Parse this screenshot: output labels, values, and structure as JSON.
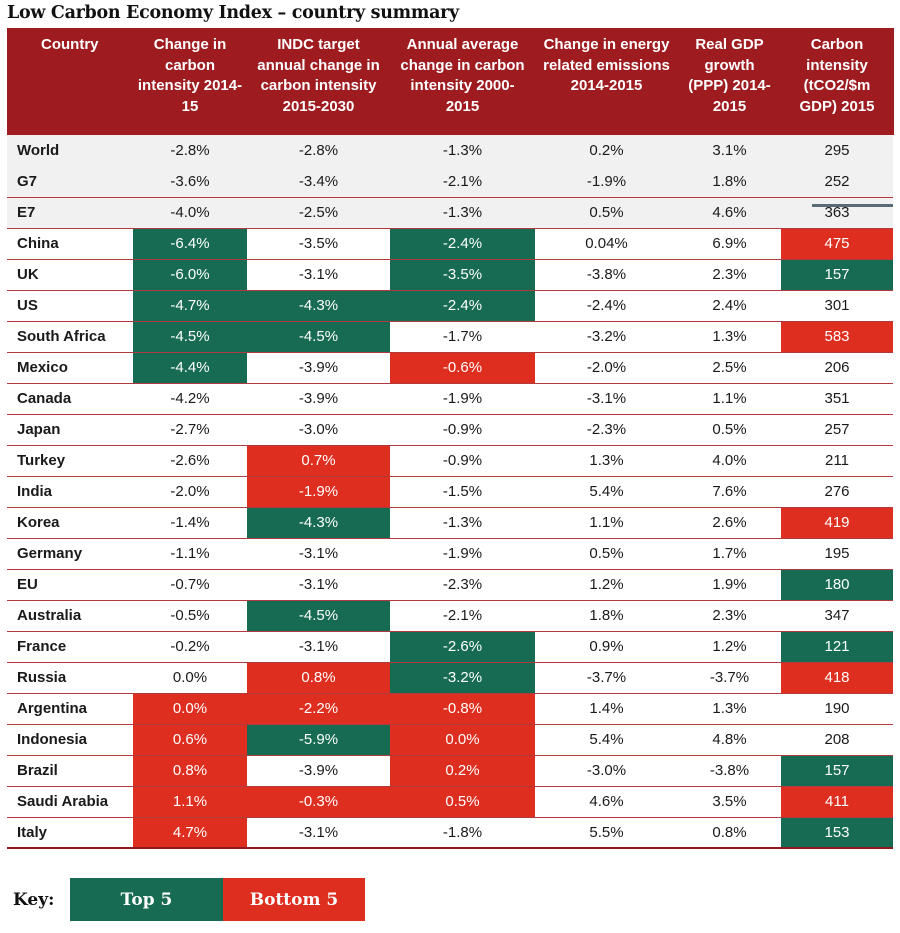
{
  "title": "Low Carbon Economy Index – country summary",
  "colors": {
    "header": "#9e1b20",
    "top5": "#176b53",
    "bottom5": "#de2e1f",
    "aggregate_row": "#f1f1f1"
  },
  "columns": [
    "Country",
    "Change in carbon intensity 2014-15",
    "INDC target annual change in carbon intensity 2015-2030",
    "Annual average change in carbon intensity 2000-2015",
    "Change in energy related emissions 2014-2015",
    "Real GDP growth (PPP) 2014-2015",
    "Carbon intensity (tCO2/$m GDP) 2015"
  ],
  "rows": [
    {
      "country": "World",
      "values": [
        "-2.8%",
        "-2.8%",
        "-1.3%",
        "0.2%",
        "3.1%",
        "295"
      ],
      "highlight": [
        "",
        "",
        "",
        "",
        "",
        ""
      ],
      "aggregate": true
    },
    {
      "country": "G7",
      "values": [
        "-3.6%",
        "-3.4%",
        "-2.1%",
        "-1.9%",
        "1.8%",
        "252"
      ],
      "highlight": [
        "",
        "",
        "",
        "",
        "",
        ""
      ],
      "aggregate": true
    },
    {
      "country": "E7",
      "values": [
        "-4.0%",
        "-2.5%",
        "-1.3%",
        "0.5%",
        "4.6%",
        "363"
      ],
      "highlight": [
        "",
        "",
        "",
        "",
        "",
        ""
      ],
      "aggregate": true
    },
    {
      "country": "China",
      "values": [
        "-6.4%",
        "-3.5%",
        "-2.4%",
        "0.04%",
        "6.9%",
        "475"
      ],
      "highlight": [
        "top",
        "",
        "top",
        "",
        "",
        "bottom"
      ]
    },
    {
      "country": "UK",
      "values": [
        "-6.0%",
        "-3.1%",
        "-3.5%",
        "-3.8%",
        "2.3%",
        "157"
      ],
      "highlight": [
        "top",
        "",
        "top",
        "",
        "",
        "top"
      ]
    },
    {
      "country": "US",
      "values": [
        "-4.7%",
        "-4.3%",
        "-2.4%",
        "-2.4%",
        "2.4%",
        "301"
      ],
      "highlight": [
        "top",
        "top",
        "top",
        "",
        "",
        ""
      ]
    },
    {
      "country": "South Africa",
      "values": [
        "-4.5%",
        "-4.5%",
        "-1.7%",
        "-3.2%",
        "1.3%",
        "583"
      ],
      "highlight": [
        "top",
        "top",
        "",
        "",
        "",
        "bottom"
      ]
    },
    {
      "country": "Mexico",
      "values": [
        "-4.4%",
        "-3.9%",
        "-0.6%",
        "-2.0%",
        "2.5%",
        "206"
      ],
      "highlight": [
        "top",
        "",
        "bottom",
        "",
        "",
        ""
      ]
    },
    {
      "country": "Canada",
      "values": [
        "-4.2%",
        "-3.9%",
        "-1.9%",
        "-3.1%",
        "1.1%",
        "351"
      ],
      "highlight": [
        "",
        "",
        "",
        "",
        "",
        ""
      ]
    },
    {
      "country": "Japan",
      "values": [
        "-2.7%",
        "-3.0%",
        "-0.9%",
        "-2.3%",
        "0.5%",
        "257"
      ],
      "highlight": [
        "",
        "",
        "",
        "",
        "",
        ""
      ]
    },
    {
      "country": "Turkey",
      "values": [
        "-2.6%",
        "0.7%",
        "-0.9%",
        "1.3%",
        "4.0%",
        "211"
      ],
      "highlight": [
        "",
        "bottom",
        "",
        "",
        "",
        ""
      ]
    },
    {
      "country": "India",
      "values": [
        "-2.0%",
        "-1.9%",
        "-1.5%",
        "5.4%",
        "7.6%",
        "276"
      ],
      "highlight": [
        "",
        "bottom",
        "",
        "",
        "",
        ""
      ]
    },
    {
      "country": "Korea",
      "values": [
        "-1.4%",
        "-4.3%",
        "-1.3%",
        "1.1%",
        "2.6%",
        "419"
      ],
      "highlight": [
        "",
        "top",
        "",
        "",
        "",
        "bottom"
      ]
    },
    {
      "country": "Germany",
      "values": [
        "-1.1%",
        "-3.1%",
        "-1.9%",
        "0.5%",
        "1.7%",
        "195"
      ],
      "highlight": [
        "",
        "",
        "",
        "",
        "",
        ""
      ]
    },
    {
      "country": "EU",
      "values": [
        "-0.7%",
        "-3.1%",
        "-2.3%",
        "1.2%",
        "1.9%",
        "180"
      ],
      "highlight": [
        "",
        "",
        "",
        "",
        "",
        "top"
      ]
    },
    {
      "country": "Australia",
      "values": [
        "-0.5%",
        "-4.5%",
        "-2.1%",
        "1.8%",
        "2.3%",
        "347"
      ],
      "highlight": [
        "",
        "top",
        "",
        "",
        "",
        ""
      ]
    },
    {
      "country": "France",
      "values": [
        "-0.2%",
        "-3.1%",
        "-2.6%",
        "0.9%",
        "1.2%",
        "121"
      ],
      "highlight": [
        "",
        "",
        "top",
        "",
        "",
        "top"
      ]
    },
    {
      "country": "Russia",
      "values": [
        "0.0%",
        "0.8%",
        "-3.2%",
        "-3.7%",
        "-3.7%",
        "418"
      ],
      "highlight": [
        "",
        "bottom",
        "top",
        "",
        "",
        "bottom"
      ]
    },
    {
      "country": "Argentina",
      "values": [
        "0.0%",
        "-2.2%",
        "-0.8%",
        "1.4%",
        "1.3%",
        "190"
      ],
      "highlight": [
        "bottom",
        "bottom",
        "bottom",
        "",
        "",
        ""
      ]
    },
    {
      "country": "Indonesia",
      "values": [
        "0.6%",
        "-5.9%",
        "0.0%",
        "5.4%",
        "4.8%",
        "208"
      ],
      "highlight": [
        "bottom",
        "top",
        "bottom",
        "",
        "",
        ""
      ]
    },
    {
      "country": "Brazil",
      "values": [
        "0.8%",
        "-3.9%",
        "0.2%",
        "-3.0%",
        "-3.8%",
        "157"
      ],
      "highlight": [
        "bottom",
        "",
        "bottom",
        "",
        "",
        "top"
      ]
    },
    {
      "country": "Saudi Arabia",
      "values": [
        "1.1%",
        "-0.3%",
        "0.5%",
        "4.6%",
        "3.5%",
        "411"
      ],
      "highlight": [
        "bottom",
        "bottom",
        "bottom",
        "",
        "",
        "bottom"
      ]
    },
    {
      "country": "Italy",
      "values": [
        "4.7%",
        "-3.1%",
        "-1.8%",
        "5.5%",
        "0.8%",
        "153"
      ],
      "highlight": [
        "bottom",
        "",
        "",
        "",
        "",
        "top"
      ]
    }
  ],
  "key": {
    "label": "Key:",
    "top": "Top 5",
    "bottom": "Bottom 5"
  }
}
